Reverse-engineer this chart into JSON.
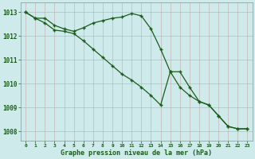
{
  "title": "Graphe pression niveau de la mer (hPa)",
  "background_color": "#ceeaea",
  "grid_color": "#b0c8c8",
  "line_color": "#1a5c1a",
  "marker_color": "#1a5c1a",
  "xlim": [
    -0.5,
    23.5
  ],
  "ylim": [
    1007.6,
    1013.4
  ],
  "yticks": [
    1008,
    1009,
    1010,
    1011,
    1012,
    1013
  ],
  "xticks": [
    0,
    1,
    2,
    3,
    4,
    5,
    6,
    7,
    8,
    9,
    10,
    11,
    12,
    13,
    14,
    15,
    16,
    17,
    18,
    19,
    20,
    21,
    22,
    23
  ],
  "series1": [
    1013.0,
    1012.75,
    1012.75,
    1012.45,
    1012.3,
    1012.2,
    1012.35,
    1012.55,
    1012.65,
    1012.75,
    1012.8,
    1012.95,
    1012.85,
    1012.3,
    1011.45,
    1010.5,
    1010.5,
    1009.85,
    1009.25,
    1009.1,
    1008.65,
    1008.2,
    1008.1,
    1008.1
  ],
  "series2": [
    1013.0,
    1012.75,
    1012.55,
    1012.25,
    1012.2,
    1012.1,
    1011.8,
    1011.45,
    1011.1,
    1010.75,
    1010.4,
    1010.15,
    1009.85,
    1009.5,
    1009.1,
    1010.5,
    1009.85,
    1009.5,
    1009.25,
    1009.1,
    1008.65,
    1008.2,
    1008.1,
    1008.1
  ]
}
